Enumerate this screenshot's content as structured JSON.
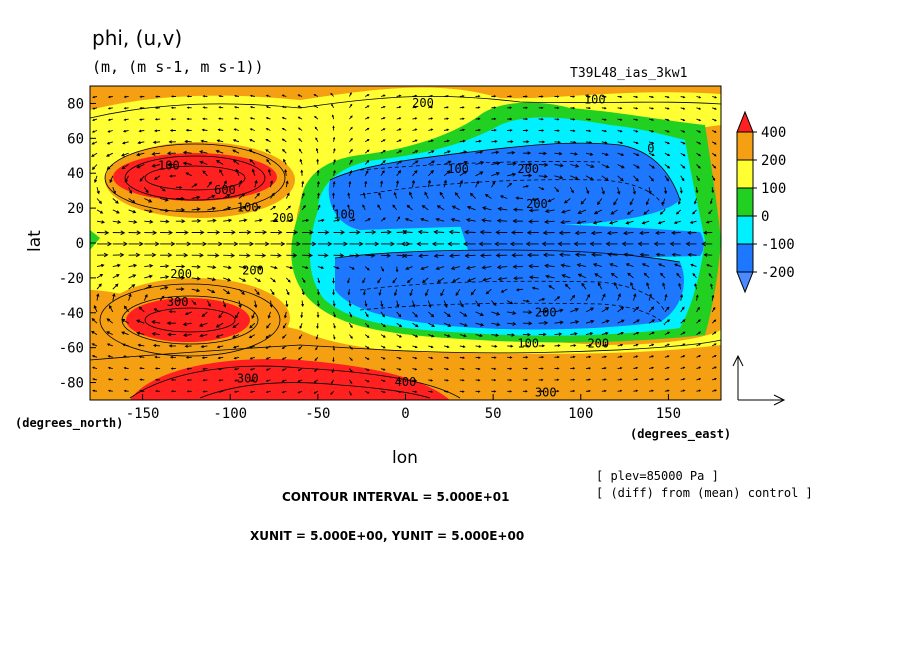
{
  "chart_data": {
    "type": "heatmap",
    "title": "phi, (u,v)",
    "units": "(m, (m s-1, m s-1))",
    "run_label": "T39L48_ias_3kw1",
    "xlabel": "lon",
    "ylabel": "lat",
    "x_units": "(degrees_east)",
    "y_units": "(degrees_north)",
    "xlim": [
      -180,
      180
    ],
    "ylim": [
      -90,
      90
    ],
    "x_ticks": [
      "-150",
      "-100",
      "-50",
      "0",
      "50",
      "100",
      "150"
    ],
    "y_ticks": [
      "80",
      "60",
      "40",
      "20",
      "0",
      "-20",
      "-40",
      "-60",
      "-80"
    ],
    "colorbar": {
      "levels": [
        "400",
        "200",
        "100",
        "0",
        "-100",
        "-200"
      ],
      "colors": [
        "#ff2020",
        "#f5a013",
        "#ffff33",
        "#22d022",
        "#00f0ff",
        "#1e78ff",
        "#4b8aff"
      ]
    },
    "contour_labels": [
      {
        "text": "200",
        "lon": 10,
        "lat": 78
      },
      {
        "text": "100",
        "lon": 108,
        "lat": 80
      },
      {
        "text": "100",
        "lon": -135,
        "lat": 42
      },
      {
        "text": "600",
        "lon": -103,
        "lat": 28
      },
      {
        "text": "100",
        "lon": -90,
        "lat": 18
      },
      {
        "text": "200",
        "lon": -70,
        "lat": 12
      },
      {
        "text": "100",
        "lon": 30,
        "lat": 40
      },
      {
        "text": "200",
        "lon": 70,
        "lat": 40
      },
      {
        "text": "200",
        "lon": 75,
        "lat": 20
      },
      {
        "text": "100",
        "lon": -35,
        "lat": 14
      },
      {
        "text": "0",
        "lon": 140,
        "lat": 52
      },
      {
        "text": "200",
        "lon": -128,
        "lat": -20
      },
      {
        "text": "200",
        "lon": -87,
        "lat": -18
      },
      {
        "text": "300",
        "lon": -130,
        "lat": -36
      },
      {
        "text": "200",
        "lon": 80,
        "lat": -42
      },
      {
        "text": "100",
        "lon": 70,
        "lat": -60
      },
      {
        "text": "200",
        "lon": 110,
        "lat": -60
      },
      {
        "text": "300",
        "lon": -90,
        "lat": -80
      },
      {
        "text": "400",
        "lon": 0,
        "lat": -82
      },
      {
        "text": "300",
        "lon": 80,
        "lat": -88
      }
    ],
    "vector_reference": "XUNIT = 5.000E+00, YUNIT = 5.000E+00"
  },
  "footer": {
    "contour_interval": "CONTOUR INTERVAL = 5.000E+01",
    "units_line": "XUNIT = 5.000E+00, YUNIT = 5.000E+00",
    "plev": "[ plev=85000 Pa ]",
    "diff": "[ (diff) from (mean) control ]"
  }
}
